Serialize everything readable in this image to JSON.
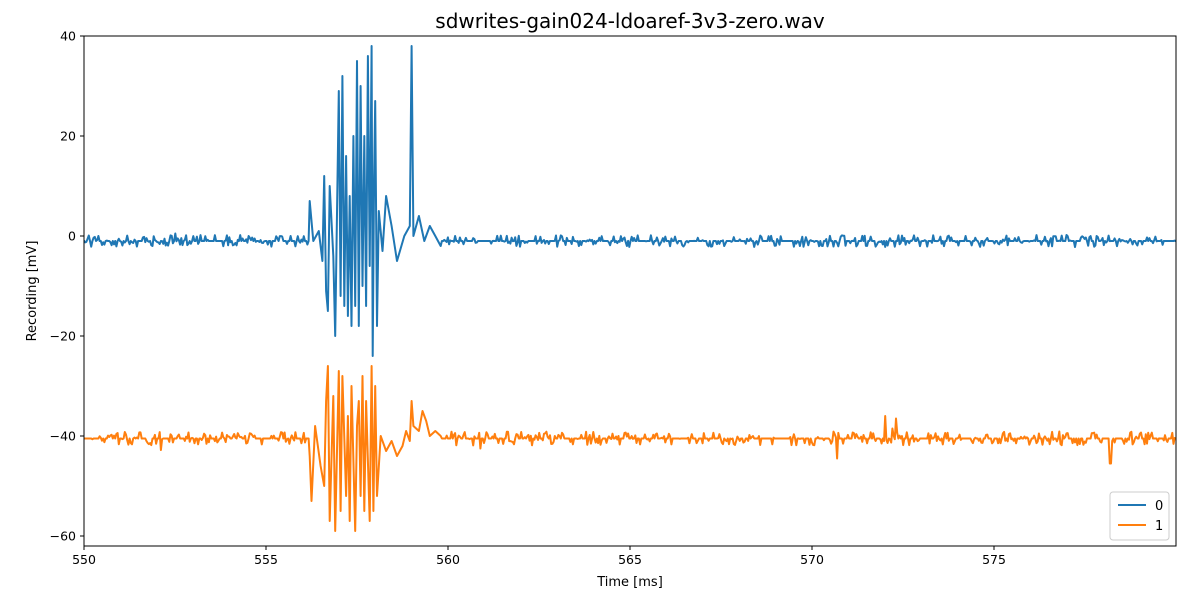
{
  "chart_data": {
    "type": "line",
    "title": "sdwrites-gain024-ldoaref-3v3-zero.wav",
    "xlabel": "Time [ms]",
    "ylabel": "Recording [mV]",
    "xlim": [
      550,
      580
    ],
    "ylim": [
      -62,
      40
    ],
    "xticks": [
      550,
      555,
      560,
      565,
      570,
      575
    ],
    "xtick_labels": [
      "550",
      "555",
      "560",
      "565",
      "570",
      "575"
    ],
    "yticks": [
      40,
      20,
      0,
      -20,
      -40,
      -60
    ],
    "ytick_labels": [
      "40",
      "20",
      "0",
      "−20",
      "−40",
      "−60"
    ],
    "grid": false,
    "legend_position": "lower-right",
    "colors": {
      "series0": "#1f77b4",
      "series1": "#ff7f0e"
    },
    "series": [
      {
        "name": "0",
        "color": "#1f77b4",
        "baseline": -1,
        "noise": 1.2,
        "points": [
          [
            556.2,
            7
          ],
          [
            556.3,
            -1
          ],
          [
            556.45,
            1
          ],
          [
            556.55,
            -5
          ],
          [
            556.6,
            12
          ],
          [
            556.65,
            -11
          ],
          [
            556.7,
            -15
          ],
          [
            556.75,
            10
          ],
          [
            556.85,
            -4
          ],
          [
            556.9,
            -20
          ],
          [
            557.0,
            29
          ],
          [
            557.05,
            -12
          ],
          [
            557.1,
            32
          ],
          [
            557.15,
            -14
          ],
          [
            557.2,
            16
          ],
          [
            557.25,
            -16
          ],
          [
            557.3,
            8
          ],
          [
            557.35,
            -18
          ],
          [
            557.4,
            20
          ],
          [
            557.45,
            -14
          ],
          [
            557.5,
            35
          ],
          [
            557.55,
            -18
          ],
          [
            557.6,
            30
          ],
          [
            557.65,
            -10
          ],
          [
            557.7,
            20
          ],
          [
            557.75,
            -14
          ],
          [
            557.8,
            36
          ],
          [
            557.85,
            -6
          ],
          [
            557.9,
            38
          ],
          [
            557.93,
            -24
          ],
          [
            557.97,
            12
          ],
          [
            558.0,
            27
          ],
          [
            558.05,
            -18
          ],
          [
            558.1,
            5
          ],
          [
            558.2,
            -3
          ],
          [
            558.3,
            8
          ],
          [
            558.45,
            2
          ],
          [
            558.6,
            -5
          ],
          [
            558.8,
            0
          ],
          [
            558.95,
            2
          ],
          [
            559.0,
            38
          ],
          [
            559.05,
            0
          ],
          [
            559.2,
            4
          ],
          [
            559.35,
            -1
          ],
          [
            559.5,
            2
          ],
          [
            559.65,
            0
          ],
          [
            559.8,
            -2
          ]
        ],
        "events": [
          [
            552.5,
            0.5
          ],
          [
            567.6,
            -2
          ]
        ]
      },
      {
        "name": "1",
        "color": "#ff7f0e",
        "baseline": -40.5,
        "noise": 1.4,
        "points": [
          [
            556.2,
            -44
          ],
          [
            556.25,
            -53
          ],
          [
            556.35,
            -38
          ],
          [
            556.5,
            -46
          ],
          [
            556.6,
            -50
          ],
          [
            556.65,
            -33
          ],
          [
            556.7,
            -26
          ],
          [
            556.75,
            -57
          ],
          [
            556.85,
            -32
          ],
          [
            556.9,
            -59
          ],
          [
            557.0,
            -27
          ],
          [
            557.05,
            -55
          ],
          [
            557.1,
            -28
          ],
          [
            557.2,
            -52
          ],
          [
            557.25,
            -36
          ],
          [
            557.3,
            -57
          ],
          [
            557.35,
            -30
          ],
          [
            557.45,
            -59
          ],
          [
            557.5,
            -38
          ],
          [
            557.55,
            -33
          ],
          [
            557.6,
            -52
          ],
          [
            557.65,
            -28
          ],
          [
            557.7,
            -55
          ],
          [
            557.75,
            -33
          ],
          [
            557.85,
            -57
          ],
          [
            557.9,
            -26
          ],
          [
            557.95,
            -55
          ],
          [
            558.0,
            -30
          ],
          [
            558.05,
            -52
          ],
          [
            558.15,
            -40
          ],
          [
            558.3,
            -43
          ],
          [
            558.45,
            -41
          ],
          [
            558.6,
            -44
          ],
          [
            558.75,
            -42
          ],
          [
            558.85,
            -39
          ],
          [
            558.95,
            -41
          ],
          [
            559.0,
            -33
          ],
          [
            559.05,
            -38
          ],
          [
            559.2,
            -39
          ],
          [
            559.3,
            -35
          ],
          [
            559.4,
            -37
          ],
          [
            559.5,
            -40
          ],
          [
            559.65,
            -39
          ],
          [
            559.8,
            -40
          ]
        ],
        "events": [
          [
            552.1,
            -42.8
          ],
          [
            560.9,
            -42.5
          ],
          [
            570.7,
            -44.5
          ],
          [
            572.0,
            -36
          ],
          [
            572.2,
            -38.5
          ],
          [
            572.3,
            -36.5
          ],
          [
            578.2,
            -45.5
          ]
        ]
      }
    ]
  }
}
